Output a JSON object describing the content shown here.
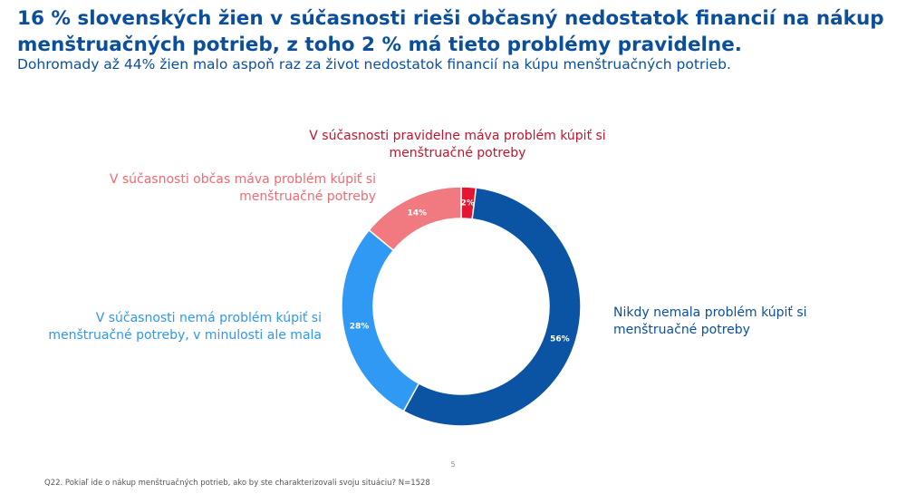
{
  "title": "16 % slovenských žien v súčasnosti rieši občasný nedostatok financií na nákup menštruačných potrieb, z toho 2 % má tieto problémy pravidelne.",
  "subtitle": "Dohromady až 44% žien malo aspoň raz za život nedostatok financií na kúpu menštruačných potrieb.",
  "chart_data": {
    "type": "pie",
    "variant": "donut",
    "series": [
      {
        "name": "V súčasnosti pravidelne máva problém kúpiť si menštruačné potreby",
        "value": 2,
        "label": "2%",
        "color": "#e3172f"
      },
      {
        "name": "Nikdy nemala problém kúpiť si menštruačné potreby",
        "value": 56,
        "label": "56%",
        "color": "#0b54a4"
      },
      {
        "name": "V súčasnosti nemá problém kúpiť si menštruačné potreby, v minulosti ale mala",
        "value": 28,
        "label": "28%",
        "color": "#2f99f3"
      },
      {
        "name": "V súčasnosti občas máva problém kúpiť si menštruačné potreby",
        "value": 14,
        "label": "14%",
        "color": "#f07a80"
      }
    ]
  },
  "labels": {
    "red": "V súčasnosti pravidelne máva problém kúpiť si menštruačné potreby",
    "pink": "V súčasnosti občas máva problém kúpiť si menštruačné potreby",
    "lightblue": "V súčasnosti nemá problém kúpiť si menštruačné potreby, v minulosti ale mala",
    "darkblue": "Nikdy nemala problém kúpiť si menštruačné potreby"
  },
  "page_number": "5",
  "footnote": "Q22. Pokiaľ ide o nákup menštruačných potrieb, ako by ste charakterizovali svoju situáciu? N=1528"
}
